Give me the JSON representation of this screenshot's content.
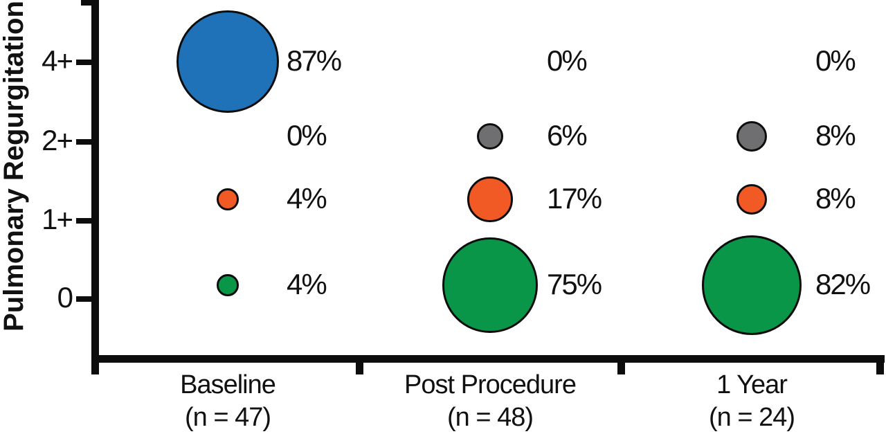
{
  "figure": {
    "background": "#ffffff",
    "axis_color": "#0d0d0d"
  },
  "chart_data": {
    "type": "bubble",
    "title": "",
    "xlabel": "",
    "ylabel": "Pulmonary Regurgitation",
    "legend": "none",
    "grid": "off",
    "sizing": "bubble area proportional to percentage",
    "y_tick_labels": [
      "4+",
      "2+",
      "1+",
      "0"
    ],
    "rows": [
      {
        "level": "4+",
        "color": "#1F72B8",
        "color_name": "blue"
      },
      {
        "level": "2+",
        "color": "#6F6F72",
        "color_name": "gray"
      },
      {
        "level": "1+",
        "color": "#F15A24",
        "color_name": "orange"
      },
      {
        "level": "0",
        "color": "#0A9648",
        "color_name": "green"
      }
    ],
    "columns": [
      {
        "label": "Baseline",
        "n_label": "(n = 47)",
        "n": 47,
        "values": [
          87,
          0,
          4,
          4
        ],
        "value_labels": [
          "87%",
          "0%",
          "4%",
          "4%"
        ]
      },
      {
        "label": "Post Procedure",
        "n_label": "(n = 48)",
        "n": 48,
        "values": [
          0,
          6,
          17,
          75
        ],
        "value_labels": [
          "0%",
          "6%",
          "17%",
          "75%"
        ]
      },
      {
        "label": "1 Year",
        "n_label": "(n = 24)",
        "n": 24,
        "values": [
          0,
          8,
          8,
          82
        ],
        "value_labels": [
          "0%",
          "8%",
          "8%",
          "82%"
        ]
      }
    ]
  }
}
